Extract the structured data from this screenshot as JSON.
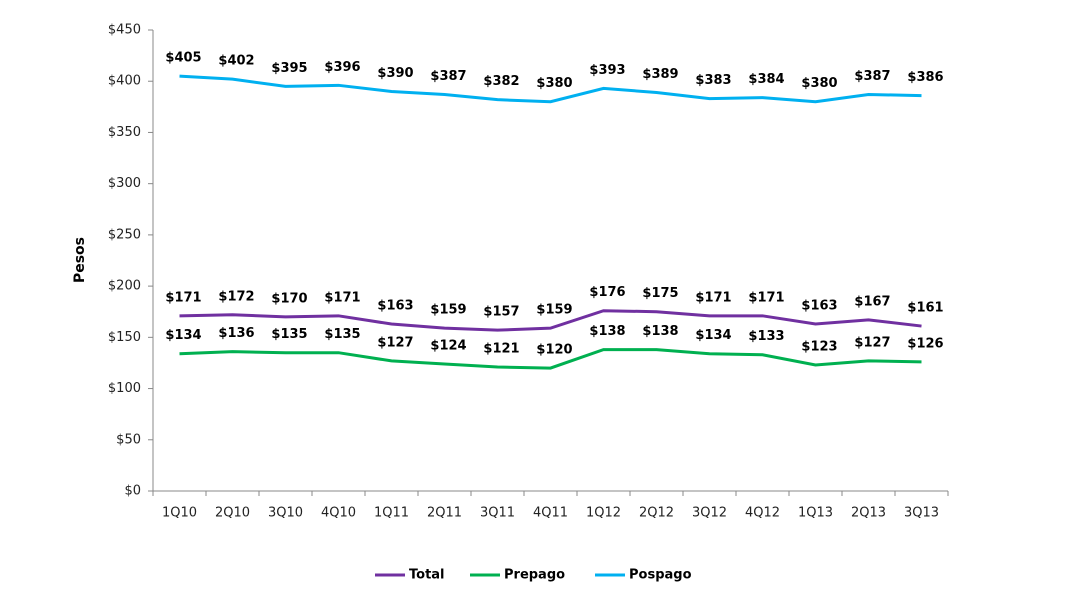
{
  "chart_data": {
    "type": "line",
    "y_label": "Pesos",
    "categories": [
      "1Q10",
      "2Q10",
      "3Q10",
      "4Q10",
      "1Q11",
      "2Q11",
      "3Q11",
      "4Q11",
      "1Q12",
      "2Q12",
      "3Q12",
      "4Q12",
      "1Q13",
      "2Q13",
      "3Q13"
    ],
    "series": [
      {
        "name": "Total",
        "color": "#7030a0",
        "values": [
          171,
          172,
          170,
          171,
          163,
          159,
          157,
          159,
          176,
          175,
          171,
          171,
          163,
          167,
          161
        ],
        "value_labels": [
          "$171",
          "$172",
          "$170",
          "$171",
          "$163",
          "$159",
          "$157",
          "$159",
          "$176",
          "$175",
          "$171",
          "$171",
          "$163",
          "$167",
          "$161"
        ]
      },
      {
        "name": "Prepago",
        "color": "#00b050",
        "values": [
          134,
          136,
          135,
          135,
          127,
          124,
          121,
          120,
          138,
          138,
          134,
          133,
          123,
          127,
          126
        ],
        "value_labels": [
          "$134",
          "$136",
          "$135",
          "$135",
          "$127",
          "$124",
          "$121",
          "$120",
          "$138",
          "$138",
          "$134",
          "$133",
          "$123",
          "$127",
          "$126"
        ]
      },
      {
        "name": "Pospago",
        "color": "#00b0f0",
        "values": [
          405,
          402,
          395,
          396,
          390,
          387,
          382,
          380,
          393,
          389,
          383,
          384,
          380,
          387,
          386
        ],
        "value_labels": [
          "$405",
          "$402",
          "$395",
          "$396",
          "$390",
          "$387",
          "$382",
          "$380",
          "$393",
          "$389",
          "$383",
          "$384",
          "$380",
          "$387",
          "$386"
        ]
      }
    ],
    "ylim": [
      0,
      450
    ],
    "yticks": [
      {
        "value": 0,
        "label": "$0"
      },
      {
        "value": 50,
        "label": "$50"
      },
      {
        "value": 100,
        "label": "$100"
      },
      {
        "value": 150,
        "label": "$150"
      },
      {
        "value": 200,
        "label": "$200"
      },
      {
        "value": 250,
        "label": "$250"
      },
      {
        "value": 300,
        "label": "$300"
      },
      {
        "value": 350,
        "label": "$350"
      },
      {
        "value": 400,
        "label": "$400"
      },
      {
        "value": 450,
        "label": "$450"
      }
    ],
    "grid": false,
    "legend": "bottom"
  }
}
